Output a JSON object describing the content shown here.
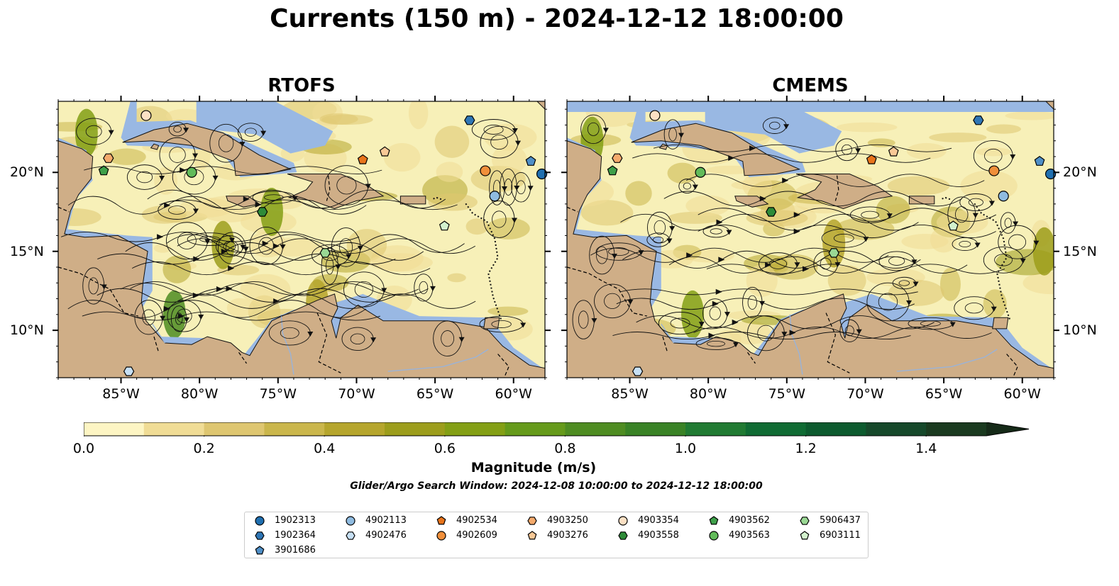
{
  "figure": {
    "title": "Currents (150 m) - 2024-12-12 18:00:00",
    "subtitle": "Glider/Argo Search Window: 2024-12-08 10:00:00 to 2024-12-12 18:00:00"
  },
  "panels": [
    {
      "title": "RTOFS",
      "flow": 1
    },
    {
      "title": "CMEMS",
      "flow": 2
    }
  ],
  "map": {
    "lon_range": [
      -89,
      -58
    ],
    "lat_range": [
      7,
      24.5
    ],
    "x_ticks": [
      {
        "value": -85,
        "label": "85°W"
      },
      {
        "value": -80,
        "label": "80°W"
      },
      {
        "value": -75,
        "label": "75°W"
      },
      {
        "value": -70,
        "label": "70°W"
      },
      {
        "value": -65,
        "label": "65°W"
      },
      {
        "value": -60,
        "label": "60°W"
      }
    ],
    "y_ticks": [
      {
        "value": 10,
        "label": "10°N"
      },
      {
        "value": 15,
        "label": "15°N"
      },
      {
        "value": 20,
        "label": "20°N"
      }
    ],
    "colors": {
      "ocean_calm": "#f7f0b8",
      "land": "#cfae87",
      "shelf_water": "#99b8e3",
      "border": "#000000"
    }
  },
  "colorbar": {
    "label": "Magnitude (m/s)",
    "range": [
      0,
      1.5
    ],
    "extend": "max",
    "tick_values": [
      0.0,
      0.2,
      0.4,
      0.6,
      0.8,
      1.0,
      1.2,
      1.4
    ],
    "tick_labels": [
      "0.0",
      "0.2",
      "0.4",
      "0.6",
      "0.8",
      "1.0",
      "1.2",
      "1.4"
    ],
    "colors": [
      "#fdf5c3",
      "#f0dc95",
      "#dec670",
      "#cab64b",
      "#b5a52c",
      "#9c9d1b",
      "#839f14",
      "#659a1a",
      "#4e8c21",
      "#398225",
      "#207a32",
      "#0f6b33",
      "#0c5a2e",
      "#15482a",
      "#1a3a1f"
    ],
    "extend_color": "#152a18"
  },
  "floats": [
    {
      "id": "1902313",
      "marker": "circle",
      "color": "#1f6fb0",
      "lon": -58.2,
      "lat": 19.9,
      "cmems_lon": -58.2,
      "cmems_lat": 19.9
    },
    {
      "id": "1902364",
      "marker": "hexagon",
      "color": "#2f76b5",
      "lon": -62.8,
      "lat": 23.3,
      "cmems_lon": -62.8,
      "cmems_lat": 23.3
    },
    {
      "id": "3901686",
      "marker": "pentagon",
      "color": "#4f8fc7",
      "lon": -58.9,
      "lat": 20.7,
      "cmems_lon": -58.9,
      "cmems_lat": 20.7
    },
    {
      "id": "4902113",
      "marker": "circle",
      "color": "#8fbbe0",
      "lon": -61.2,
      "lat": 18.5,
      "cmems_lon": -61.2,
      "cmems_lat": 18.5
    },
    {
      "id": "4902476",
      "marker": "hexagon",
      "color": "#c7e0f4",
      "lon": -84.5,
      "lat": 7.4,
      "cmems_lon": -84.5,
      "cmems_lat": 7.4
    },
    {
      "id": "4902534",
      "marker": "pentagon",
      "color": "#e8741b",
      "lon": -69.6,
      "lat": 20.8,
      "cmems_lon": -69.6,
      "cmems_lat": 20.8
    },
    {
      "id": "4902609",
      "marker": "circle",
      "color": "#f08f3a",
      "lon": -61.8,
      "lat": 20.1,
      "cmems_lon": -61.8,
      "cmems_lat": 20.1
    },
    {
      "id": "4903250",
      "marker": "hexagon",
      "color": "#f5aa6c",
      "lon": -85.8,
      "lat": 20.9,
      "cmems_lon": -85.8,
      "cmems_lat": 20.9
    },
    {
      "id": "4903276",
      "marker": "pentagon",
      "color": "#f8c896",
      "lon": -68.2,
      "lat": 21.3,
      "cmems_lon": -68.2,
      "cmems_lat": 21.3
    },
    {
      "id": "4903354",
      "marker": "circle",
      "color": "#fce0c4",
      "lon": -83.4,
      "lat": 23.6,
      "cmems_lon": -83.4,
      "cmems_lat": 23.6
    },
    {
      "id": "4903558",
      "marker": "hexagon",
      "color": "#2e8b38",
      "lon": -76.0,
      "lat": 17.5,
      "cmems_lon": -76.0,
      "cmems_lat": 17.5
    },
    {
      "id": "4903562",
      "marker": "pentagon",
      "color": "#3fa04a",
      "lon": -86.1,
      "lat": 20.1,
      "cmems_lon": -86.1,
      "cmems_lat": 20.1
    },
    {
      "id": "4903563",
      "marker": "circle",
      "color": "#62bb5a",
      "lon": -80.5,
      "lat": 20.0,
      "cmems_lon": -80.5,
      "cmems_lat": 20.0
    },
    {
      "id": "5906437",
      "marker": "hexagon",
      "color": "#9ad894",
      "lon": -72.0,
      "lat": 14.9,
      "cmems_lon": -72.0,
      "cmems_lat": 14.9
    },
    {
      "id": "6903111",
      "marker": "pentagon",
      "color": "#d3f2cd",
      "lon": -64.4,
      "lat": 16.6,
      "cmems_lon": -64.4,
      "cmems_lat": 16.6
    }
  ]
}
